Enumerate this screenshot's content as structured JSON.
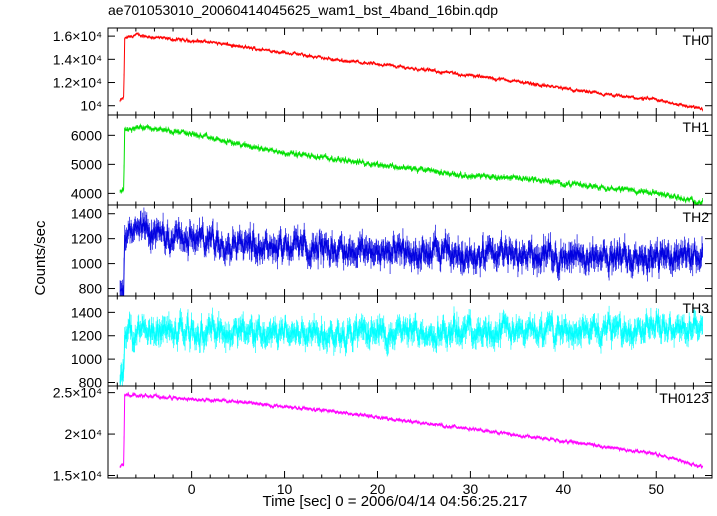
{
  "title": "ae701053010_20060414045625_wam1_bst_4band_16bin.qdp",
  "chart_data": {
    "type": "line",
    "xlabel": "Time [sec] 0 = 2006/04/14 04:56:25.217",
    "ylabel": "Counts/sec",
    "xlim": [
      -9,
      56
    ],
    "xticks": [
      0,
      10,
      20,
      30,
      40,
      50
    ],
    "grid": false,
    "panels": [
      {
        "name": "TH0",
        "color": "#ff0000",
        "ylim": [
          9200,
          16700
        ],
        "ytick_labels": [
          {
            "value": 16000,
            "label": "1.6×10⁴"
          },
          {
            "value": 14000,
            "label": "1.4×10⁴"
          },
          {
            "value": 12000,
            "label": "1.2×10⁴"
          },
          {
            "value": 10000,
            "label": "10⁴"
          }
        ],
        "noise": 130,
        "err": 90,
        "points": [
          [
            -7.7,
            10400
          ],
          [
            -7.3,
            10700
          ],
          [
            -7.2,
            15800
          ],
          [
            -6,
            16100
          ],
          [
            -4,
            15900
          ],
          [
            -2,
            15700
          ],
          [
            0,
            15600
          ],
          [
            2,
            15500
          ],
          [
            5,
            15100
          ],
          [
            10,
            14600
          ],
          [
            15,
            14000
          ],
          [
            20,
            13600
          ],
          [
            25,
            13100
          ],
          [
            30,
            12600
          ],
          [
            35,
            12100
          ],
          [
            40,
            11500
          ],
          [
            45,
            10900
          ],
          [
            50,
            10500
          ],
          [
            55,
            9700
          ]
        ]
      },
      {
        "name": "TH1",
        "color": "#00e000",
        "ylim": [
          3600,
          6700
        ],
        "ytick_labels": [
          {
            "value": 6000,
            "label": "6000"
          },
          {
            "value": 5000,
            "label": "5000"
          },
          {
            "value": 4000,
            "label": "4000"
          }
        ],
        "noise": 80,
        "err": 55,
        "points": [
          [
            -7.7,
            4050
          ],
          [
            -7.3,
            4100
          ],
          [
            -7.2,
            6200
          ],
          [
            -5,
            6300
          ],
          [
            0,
            6050
          ],
          [
            2,
            5900
          ],
          [
            5,
            5700
          ],
          [
            10,
            5400
          ],
          [
            15,
            5200
          ],
          [
            20,
            5000
          ],
          [
            25,
            4800
          ],
          [
            30,
            4600
          ],
          [
            35,
            4550
          ],
          [
            40,
            4350
          ],
          [
            45,
            4200
          ],
          [
            50,
            4000
          ],
          [
            55,
            3700
          ]
        ]
      },
      {
        "name": "TH2",
        "color": "#0000e0",
        "ylim": [
          740,
          1470
        ],
        "ytick_labels": [
          {
            "value": 1400,
            "label": "1400"
          },
          {
            "value": 1200,
            "label": "1200"
          },
          {
            "value": 1000,
            "label": "1000"
          },
          {
            "value": 800,
            "label": "800"
          }
        ],
        "noise": 95,
        "err": 70,
        "points": [
          [
            -7.7,
            760
          ],
          [
            -7.3,
            790
          ],
          [
            -7.2,
            1230
          ],
          [
            -5,
            1250
          ],
          [
            0,
            1200
          ],
          [
            10,
            1150
          ],
          [
            20,
            1100
          ],
          [
            30,
            1070
          ],
          [
            40,
            1060
          ],
          [
            50,
            1060
          ],
          [
            55,
            1070
          ]
        ]
      },
      {
        "name": "TH3",
        "color": "#00ffff",
        "ylim": [
          770,
          1540
        ],
        "ytick_labels": [
          {
            "value": 1400,
            "label": "1400"
          },
          {
            "value": 1200,
            "label": "1200"
          },
          {
            "value": 1000,
            "label": "1000"
          },
          {
            "value": 800,
            "label": "800"
          }
        ],
        "noise": 95,
        "err": 70,
        "points": [
          [
            -7.7,
            810
          ],
          [
            -7.3,
            850
          ],
          [
            -7.2,
            1250
          ],
          [
            0,
            1240
          ],
          [
            10,
            1230
          ],
          [
            20,
            1230
          ],
          [
            30,
            1240
          ],
          [
            40,
            1240
          ],
          [
            50,
            1260
          ],
          [
            55,
            1260
          ]
        ]
      },
      {
        "name": "TH0123",
        "color": "#ff00ff",
        "ylim": [
          14700,
          25800
        ],
        "ytick_labels": [
          {
            "value": 25000,
            "label": "2.5×10⁴"
          },
          {
            "value": 20000,
            "label": "2×10⁴"
          },
          {
            "value": 15000,
            "label": "1.5×10⁴"
          }
        ],
        "noise": 180,
        "err": 140,
        "points": [
          [
            -7.7,
            16100
          ],
          [
            -7.3,
            16300
          ],
          [
            -7.2,
            24800
          ],
          [
            -5,
            24600
          ],
          [
            0,
            24200
          ],
          [
            5,
            23900
          ],
          [
            10,
            23300
          ],
          [
            15,
            22800
          ],
          [
            20,
            22000
          ],
          [
            25,
            21300
          ],
          [
            30,
            20600
          ],
          [
            35,
            19900
          ],
          [
            40,
            19200
          ],
          [
            45,
            18400
          ],
          [
            50,
            17600
          ],
          [
            55,
            16000
          ]
        ]
      }
    ]
  }
}
